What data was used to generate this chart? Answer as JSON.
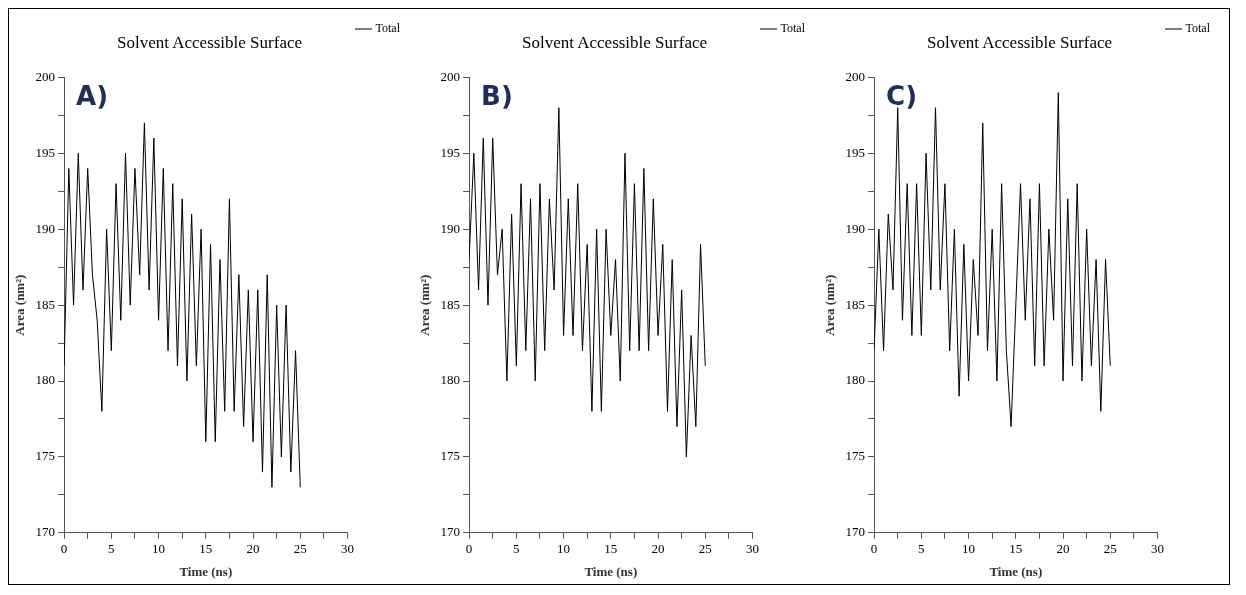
{
  "chart_data": [
    {
      "type": "line",
      "title": "Solvent Accessible Surface",
      "xlabel": "Time (ns)",
      "ylabel": "Area (nm²)",
      "annotations": [
        "A)"
      ],
      "legend": "top right",
      "grid": false,
      "marker": "none",
      "line_style": "solid",
      "xlim": [
        0,
        30
      ],
      "xticks": [
        0,
        {
          "value": 2.5,
          "label": null
        },
        5,
        {
          "value": 7.5,
          "label": null
        },
        10,
        {
          "value": 12.5,
          "label": null
        },
        15,
        {
          "value": 17.5,
          "label": null
        },
        20,
        {
          "value": 22.5,
          "label": null
        },
        25,
        {
          "value": 27.5,
          "label": null
        },
        30
      ],
      "ylim": [
        170,
        200
      ],
      "yticks": [
        170,
        {
          "value": 172.5,
          "label": null
        },
        175,
        {
          "value": 177.5,
          "label": null
        },
        180,
        {
          "value": 182.5,
          "label": null
        },
        185,
        {
          "value": 187.5,
          "label": null
        },
        190,
        {
          "value": 192.5,
          "label": null
        },
        195,
        {
          "value": 197.5,
          "label": null
        },
        200
      ],
      "x": [
        0,
        0.5,
        1,
        1.5,
        2,
        2.5,
        3,
        3.5,
        4,
        4.5,
        5,
        5.5,
        6,
        6.5,
        7,
        7.5,
        8,
        8.5,
        9,
        9.5,
        10,
        10.5,
        11,
        11.5,
        12,
        12.5,
        13,
        13.5,
        14,
        14.5,
        15,
        15.5,
        16,
        16.5,
        17,
        17.5,
        18,
        18.5,
        19,
        19.5,
        20,
        20.5,
        21,
        21.5,
        22,
        22.5,
        23,
        23.5,
        24,
        24.5,
        25
      ],
      "series": [
        {
          "name": "Total",
          "color": "#000000",
          "values": [
            181,
            194,
            185,
            195,
            186,
            194,
            187,
            184,
            178,
            190,
            182,
            193,
            184,
            195,
            185,
            194,
            187,
            197,
            186,
            196,
            184,
            194,
            182,
            193,
            181,
            192,
            180,
            191,
            181,
            190,
            176,
            189,
            176,
            188,
            178,
            192,
            178,
            187,
            177,
            186,
            176,
            186,
            174,
            187,
            173,
            185,
            175,
            185,
            174,
            182,
            173
          ]
        }
      ]
    },
    {
      "type": "line",
      "title": "Solvent Accessible Surface",
      "xlabel": "Time (ns)",
      "ylabel": "Area (nm²)",
      "annotations": [
        "B)"
      ],
      "legend": "top right",
      "grid": false,
      "marker": "none",
      "line_style": "solid",
      "xlim": [
        0,
        30
      ],
      "xticks": [
        0,
        {
          "value": 2.5,
          "label": null
        },
        5,
        {
          "value": 7.5,
          "label": null
        },
        10,
        {
          "value": 12.5,
          "label": null
        },
        15,
        {
          "value": 17.5,
          "label": null
        },
        20,
        {
          "value": 22.5,
          "label": null
        },
        25,
        {
          "value": 27.5,
          "label": null
        },
        30
      ],
      "ylim": [
        170,
        200
      ],
      "yticks": [
        170,
        {
          "value": 172.5,
          "label": null
        },
        175,
        {
          "value": 177.5,
          "label": null
        },
        180,
        {
          "value": 182.5,
          "label": null
        },
        185,
        {
          "value": 187.5,
          "label": null
        },
        190,
        {
          "value": 192.5,
          "label": null
        },
        195,
        {
          "value": 197.5,
          "label": null
        },
        200
      ],
      "x": [
        0,
        0.5,
        1,
        1.5,
        2,
        2.5,
        3,
        3.5,
        4,
        4.5,
        5,
        5.5,
        6,
        6.5,
        7,
        7.5,
        8,
        8.5,
        9,
        9.5,
        10,
        10.5,
        11,
        11.5,
        12,
        12.5,
        13,
        13.5,
        14,
        14.5,
        15,
        15.5,
        16,
        16.5,
        17,
        17.5,
        18,
        18.5,
        19,
        19.5,
        20,
        20.5,
        21,
        21.5,
        22,
        22.5,
        23,
        23.5,
        24,
        24.5,
        25
      ],
      "series": [
        {
          "name": "Total",
          "color": "#000000",
          "values": [
            188,
            195,
            186,
            196,
            185,
            196,
            187,
            190,
            180,
            191,
            181,
            193,
            182,
            192,
            180,
            193,
            182,
            192,
            186,
            198,
            183,
            192,
            183,
            193,
            182,
            189,
            178,
            190,
            178,
            190,
            183,
            188,
            180,
            195,
            182,
            193,
            182,
            194,
            182,
            192,
            183,
            189,
            178,
            188,
            177,
            186,
            175,
            183,
            177,
            189,
            181
          ]
        }
      ]
    },
    {
      "type": "line",
      "title": "Solvent Accessible Surface",
      "xlabel": "Time (ns)",
      "ylabel": "Area (nm²)",
      "annotations": [
        "C)"
      ],
      "legend": "top right",
      "grid": false,
      "marker": "none",
      "line_style": "solid",
      "xlim": [
        0,
        30
      ],
      "xticks": [
        0,
        {
          "value": 2.5,
          "label": null
        },
        5,
        {
          "value": 7.5,
          "label": null
        },
        10,
        {
          "value": 12.5,
          "label": null
        },
        15,
        {
          "value": 17.5,
          "label": null
        },
        20,
        {
          "value": 22.5,
          "label": null
        },
        25,
        {
          "value": 27.5,
          "label": null
        },
        30
      ],
      "ylim": [
        170,
        200
      ],
      "yticks": [
        170,
        {
          "value": 172.5,
          "label": null
        },
        175,
        {
          "value": 177.5,
          "label": null
        },
        180,
        {
          "value": 182.5,
          "label": null
        },
        185,
        {
          "value": 187.5,
          "label": null
        },
        190,
        {
          "value": 192.5,
          "label": null
        },
        195,
        {
          "value": 197.5,
          "label": null
        },
        200
      ],
      "x": [
        0,
        0.5,
        1,
        1.5,
        2,
        2.5,
        3,
        3.5,
        4,
        4.5,
        5,
        5.5,
        6,
        6.5,
        7,
        7.5,
        8,
        8.5,
        9,
        9.5,
        10,
        10.5,
        11,
        11.5,
        12,
        12.5,
        13,
        13.5,
        14,
        14.5,
        15,
        15.5,
        16,
        16.5,
        17,
        17.5,
        18,
        18.5,
        19,
        19.5,
        20,
        20.5,
        21,
        21.5,
        22,
        22.5,
        23,
        23.5,
        24,
        24.5,
        25
      ],
      "series": [
        {
          "name": "Total",
          "color": "#000000",
          "values": [
            182,
            190,
            182,
            191,
            186,
            198,
            184,
            193,
            183,
            193,
            183,
            195,
            186,
            198,
            186,
            193,
            182,
            190,
            179,
            189,
            180,
            188,
            183,
            197,
            182,
            190,
            180,
            193,
            182,
            177,
            185,
            193,
            184,
            192,
            181,
            193,
            181,
            190,
            184,
            199,
            180,
            192,
            181,
            193,
            180,
            190,
            181,
            188,
            178,
            188,
            181
          ]
        }
      ]
    }
  ]
}
